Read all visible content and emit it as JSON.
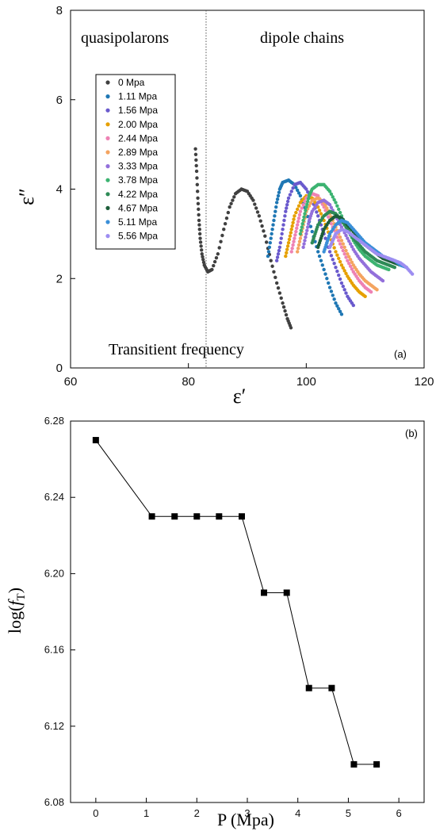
{
  "chart_data": [
    {
      "type": "scatter",
      "panel": "(a)",
      "xlabel": "ε′",
      "ylabel": "ε″",
      "xlim": [
        60,
        120
      ],
      "ylim": [
        0,
        8
      ],
      "xticks": [
        "60",
        "80",
        "100",
        "120"
      ],
      "yticks": [
        "0",
        "2",
        "4",
        "6",
        "8"
      ],
      "annotations": {
        "left_region": "quasipolarons",
        "right_region": "dipole chains",
        "transition": "Transitient frequency",
        "transition_x": 83
      },
      "legend_position": "upper-left",
      "colors": [
        "#404040",
        "#1f77b4",
        "#6a5acd",
        "#e6a000",
        "#ee82b4",
        "#f4a460",
        "#9370db",
        "#3cb371",
        "#2e8b57",
        "#1d5e3a",
        "#3a8fd8",
        "#9d8df1"
      ],
      "series": [
        {
          "name": "0 Mpa",
          "x": [
            81.2,
            81.4,
            81.6,
            81.8,
            82.0,
            82.3,
            82.7,
            83.3,
            84.0,
            85.0,
            86.0,
            87.0,
            88.0,
            89.0,
            90.0,
            91.0,
            92.0,
            93.0,
            94.0,
            95.0,
            96.0,
            96.8,
            97.4
          ],
          "y": [
            4.9,
            4.4,
            3.8,
            3.3,
            2.9,
            2.55,
            2.3,
            2.15,
            2.2,
            2.55,
            3.1,
            3.6,
            3.9,
            4.0,
            3.95,
            3.75,
            3.4,
            2.95,
            2.4,
            1.9,
            1.45,
            1.1,
            0.9
          ]
        },
        {
          "name": "1.11 Mpa",
          "x": [
            93.5,
            94.0,
            94.5,
            95.0,
            95.5,
            96.0,
            97.0,
            98.0,
            99.0,
            100.0,
            101.0,
            102.0,
            103.0,
            104.0,
            105.0,
            106.0
          ],
          "y": [
            2.5,
            2.9,
            3.3,
            3.7,
            4.0,
            4.15,
            4.2,
            4.1,
            3.85,
            3.5,
            3.05,
            2.6,
            2.2,
            1.8,
            1.45,
            1.2
          ]
        },
        {
          "name": "1.56 Mpa",
          "x": [
            95.0,
            95.5,
            96.0,
            96.5,
            97.0,
            98.0,
            99.0,
            100.0,
            101.0,
            102.0,
            103.0,
            104.0,
            105.0,
            106.0,
            107.0,
            108.0
          ],
          "y": [
            2.4,
            2.7,
            3.1,
            3.5,
            3.8,
            4.1,
            4.15,
            4.0,
            3.75,
            3.4,
            3.0,
            2.6,
            2.25,
            1.9,
            1.6,
            1.4
          ]
        },
        {
          "name": "2.00 Mpa",
          "x": [
            96.5,
            97.0,
            97.5,
            98.0,
            99.0,
            100.0,
            101.0,
            102.0,
            103.0,
            104.0,
            105.0,
            106.0,
            107.0,
            108.0,
            109.0,
            110.0
          ],
          "y": [
            2.5,
            2.8,
            3.1,
            3.4,
            3.7,
            3.85,
            3.8,
            3.6,
            3.3,
            2.95,
            2.6,
            2.3,
            2.05,
            1.85,
            1.7,
            1.6
          ]
        },
        {
          "name": "2.44 Mpa",
          "x": [
            97.5,
            98.0,
            98.5,
            99.0,
            100.0,
            101.0,
            102.0,
            103.0,
            104.0,
            105.0,
            106.0,
            107.0,
            108.0,
            109.0,
            110.0,
            111.0
          ],
          "y": [
            2.6,
            2.9,
            3.2,
            3.5,
            3.8,
            3.9,
            3.85,
            3.6,
            3.3,
            3.0,
            2.7,
            2.4,
            2.15,
            1.95,
            1.8,
            1.7
          ]
        },
        {
          "name": "2.89 Mpa",
          "x": [
            98.5,
            99.0,
            99.5,
            100.0,
            101.0,
            102.0,
            103.0,
            104.0,
            105.0,
            106.0,
            107.0,
            108.0,
            109.0,
            110.0,
            111.0,
            112.0
          ],
          "y": [
            2.6,
            2.9,
            3.2,
            3.5,
            3.75,
            3.8,
            3.7,
            3.45,
            3.15,
            2.85,
            2.55,
            2.3,
            2.1,
            1.95,
            1.85,
            1.75
          ]
        },
        {
          "name": "3.33 Mpa",
          "x": [
            99.5,
            100.0,
            100.5,
            101.0,
            102.0,
            103.0,
            104.0,
            105.0,
            106.0,
            107.0,
            108.0,
            109.0,
            110.0,
            111.0,
            112.0,
            113.0
          ],
          "y": [
            2.7,
            3.0,
            3.3,
            3.5,
            3.7,
            3.75,
            3.65,
            3.4,
            3.15,
            2.9,
            2.65,
            2.45,
            2.3,
            2.15,
            2.05,
            1.95
          ]
        },
        {
          "name": "3.78 Mpa",
          "x": [
            99.0,
            99.5,
            100.0,
            100.5,
            101.0,
            102.0,
            103.0,
            104.0,
            105.0,
            106.0,
            107.0,
            108.0,
            109.0,
            110.0,
            111.0,
            112.0,
            113.0,
            114.0
          ],
          "y": [
            3.0,
            3.3,
            3.6,
            3.85,
            4.0,
            4.1,
            4.1,
            3.95,
            3.7,
            3.4,
            3.1,
            2.85,
            2.65,
            2.5,
            2.4,
            2.3,
            2.25,
            2.2
          ]
        },
        {
          "name": "4.22 Mpa",
          "x": [
            101.0,
            101.5,
            102.0,
            103.0,
            104.0,
            105.0,
            106.0,
            107.0,
            108.0,
            109.0,
            110.0,
            111.0,
            112.0,
            113.0,
            114.0,
            115.0
          ],
          "y": [
            2.8,
            3.0,
            3.2,
            3.4,
            3.5,
            3.45,
            3.3,
            3.1,
            2.9,
            2.75,
            2.6,
            2.5,
            2.4,
            2.35,
            2.3,
            2.25
          ]
        },
        {
          "name": "4.67 Mpa",
          "x": [
            102.0,
            102.5,
            103.0,
            104.0,
            105.0,
            106.0,
            107.0,
            108.0,
            109.0,
            110.0,
            111.0,
            112.0,
            113.0,
            114.0,
            115.0,
            116.0
          ],
          "y": [
            2.7,
            2.9,
            3.1,
            3.3,
            3.4,
            3.35,
            3.2,
            3.05,
            2.9,
            2.75,
            2.65,
            2.55,
            2.45,
            2.4,
            2.35,
            2.3
          ]
        },
        {
          "name": "5.11 Mpa",
          "x": [
            103.0,
            103.5,
            104.0,
            105.0,
            106.0,
            107.0,
            108.0,
            109.0,
            110.0,
            111.0,
            112.0,
            113.0,
            114.0,
            115.0,
            116.0,
            117.0
          ],
          "y": [
            2.6,
            2.8,
            3.0,
            3.2,
            3.3,
            3.25,
            3.1,
            2.95,
            2.8,
            2.7,
            2.6,
            2.5,
            2.45,
            2.4,
            2.3,
            2.25
          ]
        },
        {
          "name": "5.56 Mpa",
          "x": [
            104.0,
            104.5,
            105.0,
            106.0,
            107.0,
            108.0,
            109.0,
            110.0,
            111.0,
            112.0,
            113.0,
            114.0,
            115.0,
            116.0,
            117.0,
            118.0
          ],
          "y": [
            2.7,
            2.85,
            3.0,
            3.1,
            3.05,
            2.95,
            2.85,
            2.75,
            2.65,
            2.55,
            2.5,
            2.45,
            2.4,
            2.35,
            2.25,
            2.1
          ]
        }
      ]
    },
    {
      "type": "line",
      "panel": "(b)",
      "xlabel": "P (Mpa)",
      "ylabel": "log(f_T)",
      "xlim": [
        -0.5,
        6.5
      ],
      "ylim": [
        6.08,
        6.28
      ],
      "xticks": [
        "0",
        "1",
        "2",
        "3",
        "4",
        "5",
        "6"
      ],
      "yticks": [
        "6.08",
        "6.12",
        "6.16",
        "6.20",
        "6.24",
        "6.28"
      ],
      "marker": "square",
      "color": "#000000",
      "series": [
        {
          "x": [
            0,
            1.11,
            1.56,
            2.0,
            2.44,
            2.89,
            3.33,
            3.78,
            4.22,
            4.67,
            5.11,
            5.56
          ],
          "y": [
            6.27,
            6.23,
            6.23,
            6.23,
            6.23,
            6.23,
            6.19,
            6.19,
            6.14,
            6.14,
            6.1,
            6.1
          ]
        }
      ]
    }
  ]
}
